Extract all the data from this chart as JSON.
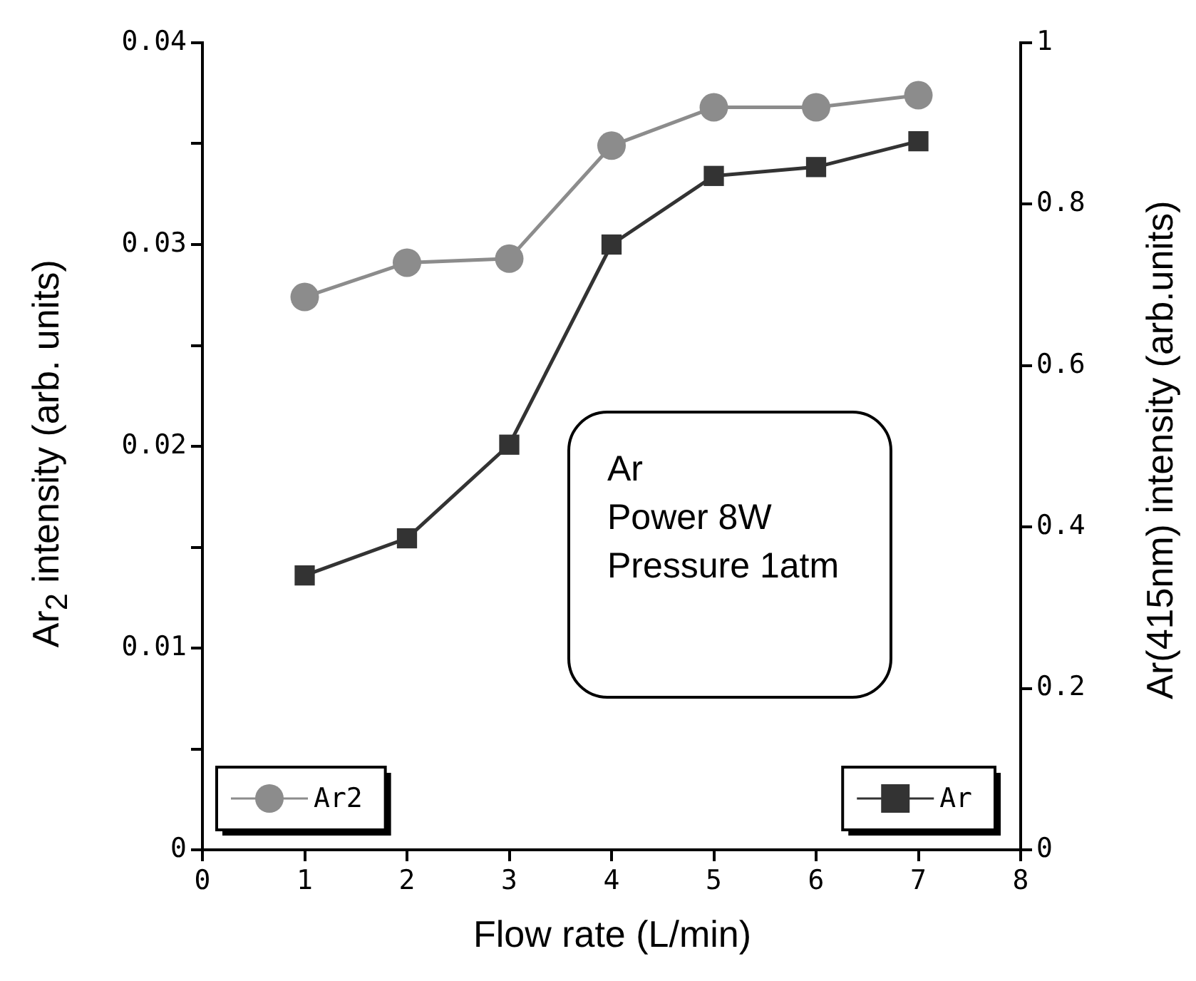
{
  "chart_data": {
    "type": "line",
    "xlabel": "Flow rate (L/min)",
    "ylabel": "Ar$_{2}$ intensity (arb. units)",
    "y2label": "Ar(415nm) intensity (arb.units)",
    "x": [
      1,
      2,
      3,
      4,
      5,
      6,
      7
    ],
    "series": [
      {
        "name": "Ar2",
        "color": "#8c8c8c",
        "marker": "circle",
        "axis": "y",
        "values": [
          0.0274,
          0.0291,
          0.0293,
          0.0349,
          0.0368,
          0.0368,
          0.0374
        ]
      },
      {
        "name": "Ar",
        "color": "#333333",
        "marker": "square",
        "axis": "y2",
        "values": [
          0.34,
          0.386,
          0.502,
          0.75,
          0.835,
          0.846,
          0.878
        ]
      }
    ],
    "xlim": [
      0,
      8
    ],
    "xticks": [
      0,
      1,
      2,
      3,
      4,
      5,
      6,
      7,
      8
    ],
    "ylim": [
      0,
      0.04
    ],
    "yticks": [
      0,
      {
        "value": 0.005,
        "label": null
      },
      0.01,
      {
        "value": 0.015,
        "label": null
      },
      0.02,
      {
        "value": 0.025,
        "label": null
      },
      0.03,
      {
        "value": 0.035,
        "label": null
      },
      0.04
    ],
    "y2lim": [
      0,
      1
    ],
    "y2ticks": [
      0,
      0.2,
      0.4,
      0.6,
      0.8,
      1
    ],
    "annotations": [
      "Ar\nPower 8W\nPressure 1atm"
    ],
    "grid": false,
    "legend": "bottom"
  }
}
